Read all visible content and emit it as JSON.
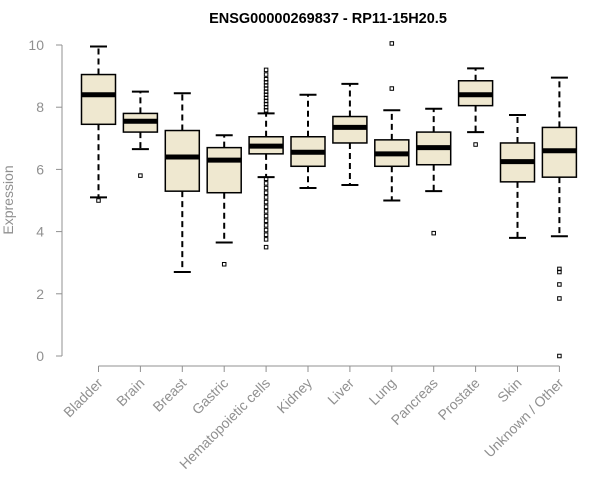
{
  "chart_data": {
    "type": "box",
    "title": "ENSG00000269837 - RP11-15H20.5",
    "xlabel": "",
    "ylabel": "Expression",
    "ylim": [
      0,
      10
    ],
    "yticks": [
      0,
      2,
      4,
      6,
      8,
      10
    ],
    "grid": false,
    "legend": "none",
    "colors": {
      "box_fill": "#efe8d0",
      "box_stroke": "#000000",
      "median": "#000000",
      "axis": "#909090",
      "tick_label": "#909090"
    },
    "categories": [
      "Bladder",
      "Brain",
      "Breast",
      "Gastric",
      "Hematopoietic cells",
      "Kidney",
      "Liver",
      "Lung",
      "Pancreas",
      "Prostate",
      "Skin",
      "Unknown / Other"
    ],
    "boxes": [
      {
        "name": "Bladder",
        "whisker_low": 5.1,
        "q1": 7.45,
        "median": 8.4,
        "q3": 9.05,
        "whisker_high": 9.95,
        "outliers": [
          5.0
        ]
      },
      {
        "name": "Brain",
        "whisker_low": 6.65,
        "q1": 7.2,
        "median": 7.55,
        "q3": 7.8,
        "whisker_high": 8.5,
        "outliers": [
          5.8
        ]
      },
      {
        "name": "Breast",
        "whisker_low": 2.7,
        "q1": 5.3,
        "median": 6.4,
        "q3": 7.25,
        "whisker_high": 8.45,
        "outliers": []
      },
      {
        "name": "Gastric",
        "whisker_low": 3.65,
        "q1": 5.25,
        "median": 6.3,
        "q3": 6.7,
        "whisker_high": 7.1,
        "outliers": [
          2.95
        ]
      },
      {
        "name": "Hematopoietic cells",
        "whisker_low": 5.75,
        "q1": 6.5,
        "median": 6.75,
        "q3": 7.05,
        "whisker_high": 7.8,
        "outliers": [
          9.2,
          9.05,
          8.9,
          8.8,
          8.7,
          8.6,
          8.5,
          8.4,
          8.3,
          8.2,
          8.1,
          8.0,
          7.9,
          5.7,
          5.55,
          5.4,
          5.25,
          5.1,
          4.95,
          4.8,
          4.65,
          4.5,
          4.35,
          4.2,
          4.05,
          3.9,
          3.75,
          3.5
        ]
      },
      {
        "name": "Kidney",
        "whisker_low": 5.4,
        "q1": 6.1,
        "median": 6.55,
        "q3": 7.05,
        "whisker_high": 8.4,
        "outliers": []
      },
      {
        "name": "Liver",
        "whisker_low": 5.5,
        "q1": 6.85,
        "median": 7.35,
        "q3": 7.7,
        "whisker_high": 8.75,
        "outliers": []
      },
      {
        "name": "Lung",
        "whisker_low": 5.0,
        "q1": 6.1,
        "median": 6.5,
        "q3": 6.95,
        "whisker_high": 7.9,
        "outliers": [
          10.05,
          8.6
        ]
      },
      {
        "name": "Pancreas",
        "whisker_low": 5.3,
        "q1": 6.15,
        "median": 6.7,
        "q3": 7.2,
        "whisker_high": 7.95,
        "outliers": [
          3.95
        ]
      },
      {
        "name": "Prostate",
        "whisker_low": 7.2,
        "q1": 8.05,
        "median": 8.4,
        "q3": 8.85,
        "whisker_high": 9.25,
        "outliers": [
          6.8
        ]
      },
      {
        "name": "Skin",
        "whisker_low": 3.8,
        "q1": 5.6,
        "median": 6.25,
        "q3": 6.85,
        "whisker_high": 7.75,
        "outliers": []
      },
      {
        "name": "Unknown / Other",
        "whisker_low": 3.85,
        "q1": 5.75,
        "median": 6.6,
        "q3": 7.35,
        "whisker_high": 8.95,
        "outliers": [
          2.8,
          2.7,
          2.3,
          1.85,
          0.0
        ]
      }
    ]
  }
}
